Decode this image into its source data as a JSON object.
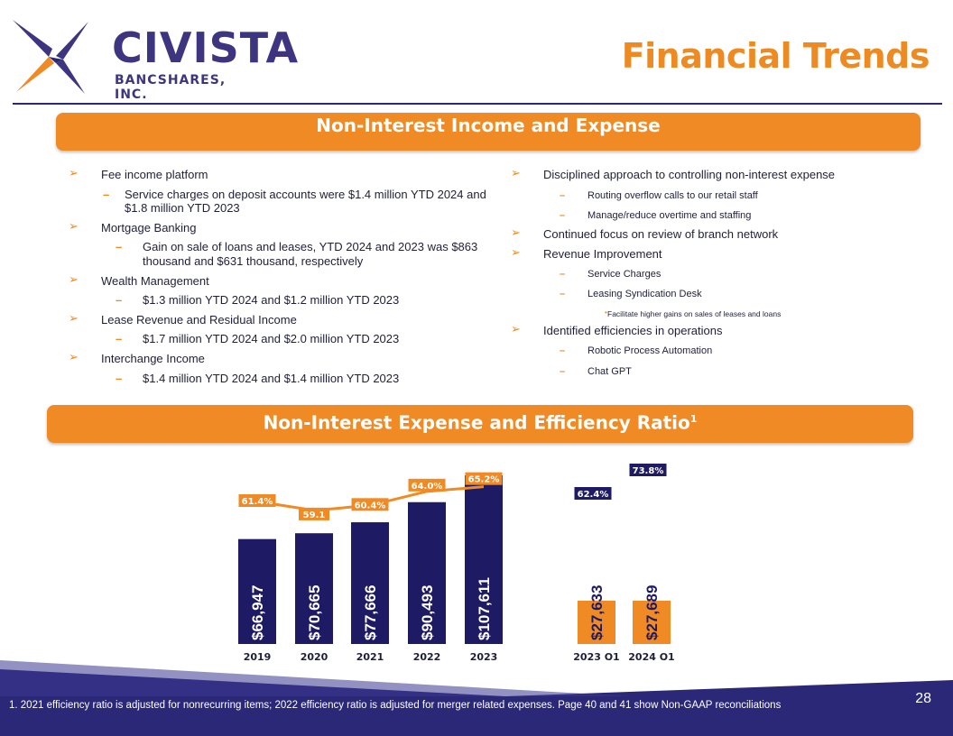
{
  "brand": {
    "name": "CIVISTA",
    "subtitle": "BANCSHARES, INC.",
    "colors": {
      "navy": "#1e1a63",
      "orange": "#f08a24",
      "purple": "#3e3580"
    }
  },
  "header": {
    "title": "Financial Trends"
  },
  "section1": {
    "banner": "Non-Interest Income and Expense",
    "left": {
      "items": [
        {
          "text": "Fee income platform",
          "subs": [
            "Service charges on deposit accounts were $1.4 million YTD 2024 and $1.8 million YTD 2023"
          ]
        },
        {
          "text": "Mortgage Banking",
          "subs": [
            "Gain on sale of loans and leases, YTD 2024 and 2023 was $863 thousand and $631 thousand, respectively"
          ]
        },
        {
          "text": "Wealth Management",
          "subs": [
            "$1.3 million YTD 2024 and $1.2 million YTD 2023"
          ]
        },
        {
          "text": "Lease Revenue and Residual Income",
          "subs": [
            "$1.7 million YTD 2024 and $2.0 million YTD 2023"
          ]
        },
        {
          "text": "Interchange Income",
          "subs": [
            "$1.4 million YTD 2024 and $1.4 million YTD 2023"
          ]
        }
      ]
    },
    "right": {
      "items": [
        {
          "text": "Disciplined approach to controlling non-interest expense",
          "subs": [
            "Routing overflow calls to our retail staff",
            "Manage/reduce overtime and staffing"
          ]
        },
        {
          "text": "Continued focus on review of branch network"
        },
        {
          "text": "Revenue Improvement",
          "subs": [
            "Service Charges",
            "Leasing Syndication Desk"
          ],
          "subsub": "Facilitate higher gains on sales of leases and loans"
        },
        {
          "text": "Identified efficiencies in operations",
          "subs": [
            "Robotic Process Automation",
            "Chat GPT"
          ]
        }
      ]
    }
  },
  "section2": {
    "banner": "Non-Interest Expense and Efficiency Ratio",
    "banner_sup": "1"
  },
  "chart_data": {
    "type": "bar",
    "title": "Non-Interest Expense and Efficiency Ratio",
    "annual": {
      "categories": [
        "2019",
        "2020",
        "2021",
        "2022",
        "2023"
      ],
      "series": [
        {
          "name": "Non-interest expense ($ thousands)",
          "values": [
            66947,
            70665,
            77666,
            90493,
            107611
          ],
          "labels": [
            "$66,947",
            "$70,665",
            "$77,666",
            "$90,493",
            "$107,611"
          ],
          "color": "#1e1a63"
        },
        {
          "name": "Efficiency ratio (%)",
          "type": "line",
          "values": [
            61.4,
            59.1,
            60.4,
            64.0,
            65.2
          ],
          "labels": [
            "61.4%",
            "59.1",
            "60.4%",
            "64.0%",
            "65.2%"
          ],
          "color": "#f08a24"
        }
      ]
    },
    "quarterly": {
      "categories": [
        "2023 Q1",
        "2024 Q1"
      ],
      "series": [
        {
          "name": "Non-interest expense ($ thousands)",
          "values": [
            27633,
            27689
          ],
          "labels": [
            "$27,633",
            "$27,689"
          ],
          "color": "#f08a24"
        },
        {
          "name": "Efficiency ratio (%)",
          "values": [
            62.4,
            73.8
          ],
          "labels": [
            "62.4%",
            "73.8%"
          ],
          "color": "#1e1a63"
        }
      ]
    },
    "grid": false,
    "legend": "none"
  },
  "footer": {
    "footnote": "1. 2021 efficiency ratio is adjusted for nonrecurring items; 2022 efficiency ratio is adjusted for merger related expenses. Page 40 and 41 show Non-GAAP reconciliations",
    "page": "28"
  }
}
